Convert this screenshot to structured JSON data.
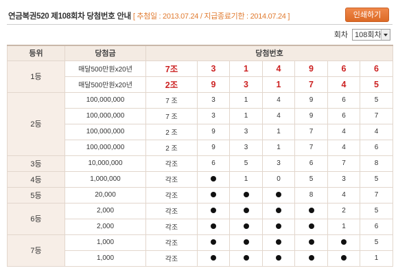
{
  "header": {
    "title": "연금복권520 제108회차 당첨번호 안내",
    "dates": "[ 추첨일 : 2013.07.24 / 지급종료기한 : 2014.07.24 ]"
  },
  "print_button": "인쇄하기",
  "round": {
    "label": "회차",
    "selected": "108회차"
  },
  "table": {
    "headers": [
      "등위",
      "당첨금",
      "당첨번호"
    ],
    "groups": [
      {
        "rank": "1등",
        "rows": [
          {
            "prize": "매달500만원x20년",
            "jo": "7조",
            "nums": [
              "3",
              "1",
              "4",
              "9",
              "6",
              "6"
            ]
          },
          {
            "prize": "매달500만원x20년",
            "jo": "2조",
            "nums": [
              "9",
              "3",
              "1",
              "7",
              "4",
              "5"
            ]
          }
        ]
      },
      {
        "rank": "2등",
        "rows": [
          {
            "prize": "100,000,000",
            "jo": "7 조",
            "nums": [
              "3",
              "1",
              "4",
              "9",
              "6",
              "5"
            ]
          },
          {
            "prize": "100,000,000",
            "jo": "7 조",
            "nums": [
              "3",
              "1",
              "4",
              "9",
              "6",
              "7"
            ]
          },
          {
            "prize": "100,000,000",
            "jo": "2 조",
            "nums": [
              "9",
              "3",
              "1",
              "7",
              "4",
              "4"
            ]
          },
          {
            "prize": "100,000,000",
            "jo": "2 조",
            "nums": [
              "9",
              "3",
              "1",
              "7",
              "4",
              "6"
            ]
          }
        ]
      },
      {
        "rank": "3등",
        "rows": [
          {
            "prize": "10,000,000",
            "jo": "각조",
            "nums": [
              "6",
              "5",
              "3",
              "6",
              "7",
              "8"
            ]
          }
        ]
      },
      {
        "rank": "4등",
        "rows": [
          {
            "prize": "1,000,000",
            "jo": "각조",
            "nums": [
              "●",
              "1",
              "0",
              "5",
              "3",
              "5"
            ]
          }
        ]
      },
      {
        "rank": "5등",
        "rows": [
          {
            "prize": "20,000",
            "jo": "각조",
            "nums": [
              "●",
              "●",
              "●",
              "8",
              "4",
              "7"
            ]
          }
        ]
      },
      {
        "rank": "6등",
        "rows": [
          {
            "prize": "2,000",
            "jo": "각조",
            "nums": [
              "●",
              "●",
              "●",
              "●",
              "2",
              "5"
            ]
          },
          {
            "prize": "2,000",
            "jo": "각조",
            "nums": [
              "●",
              "●",
              "●",
              "●",
              "1",
              "6"
            ]
          }
        ]
      },
      {
        "rank": "7등",
        "rows": [
          {
            "prize": "1,000",
            "jo": "각조",
            "nums": [
              "●",
              "●",
              "●",
              "●",
              "●",
              "5"
            ]
          },
          {
            "prize": "1,000",
            "jo": "각조",
            "nums": [
              "●",
              "●",
              "●",
              "●",
              "●",
              "1"
            ]
          }
        ]
      }
    ]
  }
}
